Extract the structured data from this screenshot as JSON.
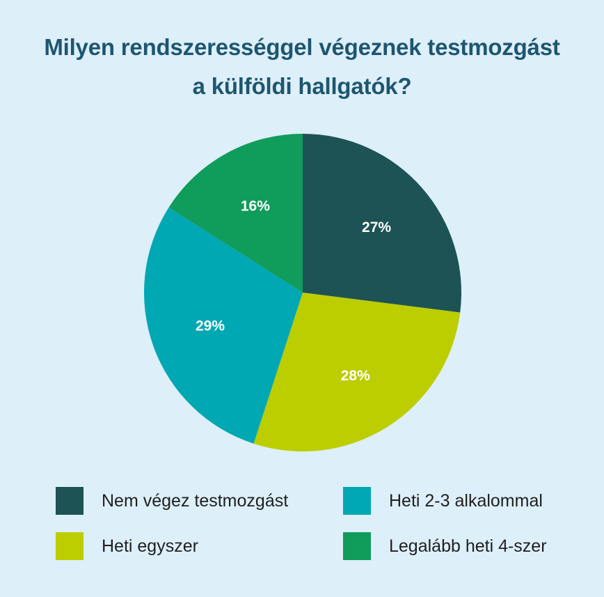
{
  "title_lines": [
    "Milyen rendszerességgel végeznek testmozgást",
    "a külföldi hallgatók?"
  ],
  "chart_data": {
    "type": "pie",
    "title": "Milyen rendszerességgel végeznek testmozgást a külföldi hallgatók?",
    "start": "12 o'clock",
    "direction": "clockwise",
    "slices": [
      {
        "label": "Nem végez testmozgást",
        "value": 27,
        "display": "27%",
        "color": "#1d5355"
      },
      {
        "label": "Heti egyszer",
        "value": 28,
        "display": "28%",
        "color": "#bccd00"
      },
      {
        "label": "Heti 2-3 alkalommal",
        "value": 29,
        "display": "29%",
        "color": "#00a8b3"
      },
      {
        "label": "Legalább heti 4-szer",
        "value": 16,
        "display": "16%",
        "color": "#109c5a"
      }
    ],
    "legend_placement": "bottom"
  },
  "legend": [
    {
      "label": "Nem végez testmozgást",
      "color": "#1d5355"
    },
    {
      "label": "Heti 2-3 alkalommal",
      "color": "#00a8b3"
    },
    {
      "label": "Heti egyszer",
      "color": "#bccd00"
    },
    {
      "label": "Legalább heti 4-szer",
      "color": "#109c5a"
    }
  ],
  "colors": {
    "background": "#ddeff8",
    "title": "#1e5670"
  }
}
